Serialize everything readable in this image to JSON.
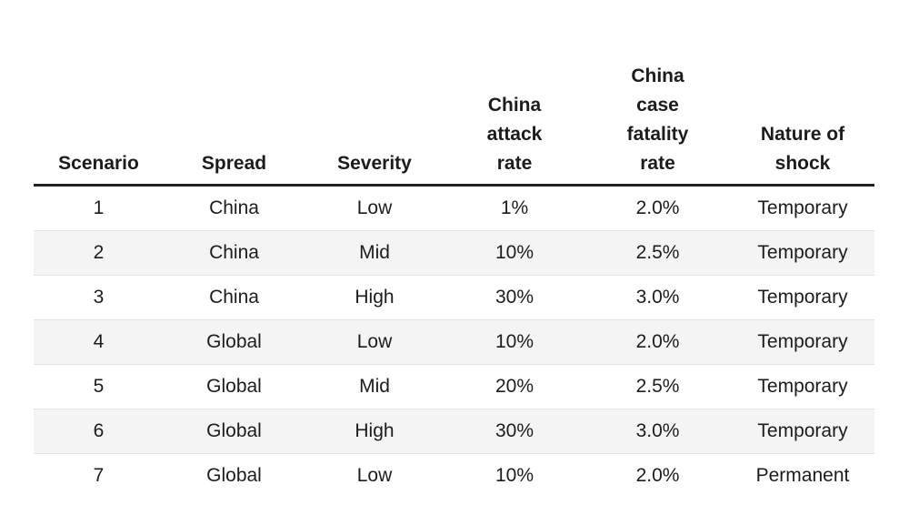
{
  "chart_data": {
    "type": "table",
    "title": "",
    "columns": [
      "Scenario",
      "Spread",
      "Severity",
      "China attack rate",
      "China case fatality rate",
      "Nature of shock"
    ],
    "rows": [
      [
        "1",
        "China",
        "Low",
        "1%",
        "2.0%",
        "Temporary"
      ],
      [
        "2",
        "China",
        "Mid",
        "10%",
        "2.5%",
        "Temporary"
      ],
      [
        "3",
        "China",
        "High",
        "30%",
        "3.0%",
        "Temporary"
      ],
      [
        "4",
        "Global",
        "Low",
        "10%",
        "2.0%",
        "Temporary"
      ],
      [
        "5",
        "Global",
        "Mid",
        "20%",
        "2.5%",
        "Temporary"
      ],
      [
        "6",
        "Global",
        "High",
        "30%",
        "3.0%",
        "Temporary"
      ],
      [
        "7",
        "Global",
        "Low",
        "10%",
        "2.0%",
        "Permanent"
      ]
    ]
  },
  "display": {
    "headers": [
      "Scenario",
      "Spread",
      "Severity",
      "China\nattack\nrate",
      "China\ncase\nfatality\nrate",
      "Nature of\nshock"
    ]
  },
  "colors": {
    "text": "#1c1c1c",
    "header_rule": "#212121",
    "row_stripe": "#f4f4f4",
    "row_stripe_border": "#e3e3e3",
    "background": "#ffffff"
  }
}
